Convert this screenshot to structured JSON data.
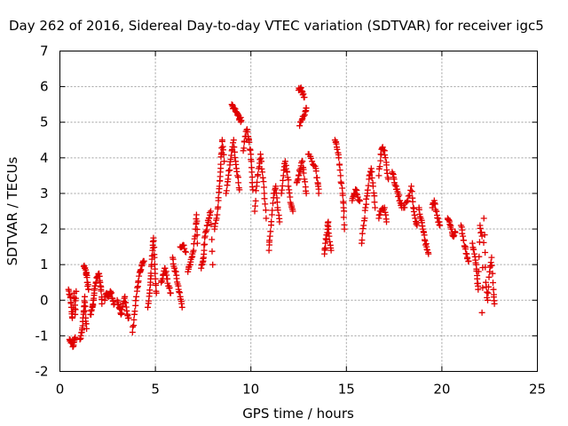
{
  "chart_data": {
    "type": "scatter",
    "title": "Day 262 of 2016, Sidereal Day-to-day VTEC variation (SDTVAR) for receiver igc5",
    "xlabel": "GPS time / hours",
    "ylabel": "SDTVAR / TECUs",
    "xlim": [
      0,
      25
    ],
    "ylim": [
      -2,
      7
    ],
    "xticks": [
      "0",
      "5",
      "10",
      "15",
      "20",
      "25"
    ],
    "yticks": [
      "-2",
      "-1",
      "0",
      "1",
      "2",
      "3",
      "4",
      "5",
      "6",
      "7"
    ],
    "grid": true,
    "marker": "plus",
    "marker_color": "#e00000",
    "series": [
      {
        "name": "SDTVAR",
        "segments": [
          [
            [
              0.45,
              0.3
            ],
            [
              0.55,
              0.1
            ],
            [
              0.6,
              -0.2
            ],
            [
              0.65,
              -0.5
            ],
            [
              0.75,
              0.2
            ],
            [
              0.8,
              -0.4
            ],
            [
              0.85,
              0.25
            ]
          ],
          [
            [
              0.5,
              -1.1
            ],
            [
              0.6,
              -1.2
            ],
            [
              0.7,
              -1.3
            ],
            [
              0.75,
              -1.1
            ],
            [
              0.8,
              -1.05
            ]
          ],
          [
            [
              1.05,
              -1.1
            ],
            [
              1.15,
              -0.9
            ],
            [
              1.2,
              -0.6
            ],
            [
              1.25,
              -0.3
            ],
            [
              1.3,
              0.1
            ],
            [
              1.35,
              -0.5
            ],
            [
              1.4,
              -0.8
            ]
          ],
          [
            [
              1.25,
              0.95
            ],
            [
              1.35,
              0.85
            ],
            [
              1.4,
              0.7
            ],
            [
              1.45,
              0.5
            ],
            [
              1.5,
              0.3
            ]
          ],
          [
            [
              1.6,
              -0.4
            ],
            [
              1.7,
              -0.2
            ],
            [
              1.75,
              0.0
            ],
            [
              1.8,
              0.2
            ],
            [
              1.85,
              0.4
            ],
            [
              1.95,
              0.65
            ],
            [
              2.05,
              0.75
            ],
            [
              2.1,
              0.5
            ],
            [
              2.15,
              0.3
            ],
            [
              2.2,
              -0.1
            ]
          ],
          [
            [
              2.35,
              0.0
            ],
            [
              2.45,
              0.2
            ],
            [
              2.55,
              0.1
            ],
            [
              2.65,
              0.25
            ],
            [
              2.75,
              0.05
            ],
            [
              2.85,
              -0.1
            ]
          ],
          [
            [
              3.0,
              0.0
            ],
            [
              3.1,
              -0.2
            ],
            [
              3.2,
              -0.4
            ],
            [
              3.3,
              -0.1
            ],
            [
              3.4,
              0.1
            ],
            [
              3.5,
              -0.3
            ],
            [
              3.6,
              -0.5
            ]
          ],
          [
            [
              3.8,
              -0.9
            ],
            [
              3.9,
              -0.4
            ],
            [
              4.0,
              0.1
            ],
            [
              4.1,
              0.5
            ],
            [
              4.2,
              0.8
            ],
            [
              4.3,
              1.0
            ],
            [
              4.4,
              1.1
            ]
          ],
          [
            [
              4.6,
              -0.2
            ],
            [
              4.7,
              0.2
            ],
            [
              4.75,
              0.6
            ],
            [
              4.8,
              1.0
            ],
            [
              4.85,
              1.4
            ],
            [
              4.9,
              1.75
            ],
            [
              4.95,
              1.2
            ],
            [
              5.0,
              0.6
            ],
            [
              5.05,
              0.2
            ]
          ],
          [
            [
              5.3,
              0.5
            ],
            [
              5.4,
              0.7
            ],
            [
              5.5,
              0.9
            ],
            [
              5.6,
              0.6
            ],
            [
              5.7,
              0.4
            ],
            [
              5.8,
              0.2
            ]
          ],
          [
            [
              5.9,
              1.2
            ],
            [
              6.0,
              0.9
            ],
            [
              6.1,
              0.7
            ],
            [
              6.2,
              0.4
            ],
            [
              6.3,
              0.1
            ],
            [
              6.4,
              -0.2
            ]
          ],
          [
            [
              6.3,
              1.5
            ],
            [
              6.45,
              1.55
            ],
            [
              6.6,
              1.35
            ]
          ],
          [
            [
              6.7,
              0.8
            ],
            [
              6.8,
              1.0
            ],
            [
              6.9,
              1.2
            ],
            [
              7.0,
              1.4
            ],
            [
              7.1,
              2.0
            ],
            [
              7.15,
              2.4
            ],
            [
              7.2,
              1.6
            ]
          ],
          [
            [
              7.4,
              0.9
            ],
            [
              7.5,
              1.1
            ],
            [
              7.55,
              1.4
            ],
            [
              7.6,
              1.8
            ],
            [
              7.7,
              2.1
            ],
            [
              7.8,
              2.3
            ],
            [
              7.9,
              2.5
            ],
            [
              8.0,
              1.0
            ]
          ],
          [
            [
              8.1,
              2.0
            ],
            [
              8.2,
              2.3
            ],
            [
              8.3,
              2.8
            ],
            [
              8.35,
              3.2
            ],
            [
              8.4,
              3.6
            ],
            [
              8.45,
              4.1
            ],
            [
              8.5,
              4.5
            ],
            [
              8.6,
              3.9
            ]
          ],
          [
            [
              8.7,
              3.0
            ],
            [
              8.8,
              3.4
            ],
            [
              8.9,
              3.8
            ],
            [
              9.0,
              4.2
            ],
            [
              9.1,
              4.5
            ],
            [
              9.2,
              3.9
            ],
            [
              9.3,
              3.5
            ],
            [
              9.4,
              3.1
            ]
          ],
          [
            [
              9.0,
              5.5
            ],
            [
              9.1,
              5.4
            ],
            [
              9.2,
              5.3
            ],
            [
              9.3,
              5.2
            ],
            [
              9.4,
              5.1
            ],
            [
              9.5,
              5.05
            ]
          ],
          [
            [
              9.6,
              4.2
            ],
            [
              9.7,
              4.6
            ],
            [
              9.8,
              4.8
            ],
            [
              9.9,
              4.5
            ],
            [
              10.0,
              4.1
            ],
            [
              10.05,
              3.6
            ],
            [
              10.1,
              3.1
            ]
          ],
          [
            [
              10.2,
              2.5
            ],
            [
              10.3,
              3.2
            ],
            [
              10.4,
              3.7
            ],
            [
              10.5,
              4.1
            ],
            [
              10.6,
              3.6
            ],
            [
              10.7,
              3.0
            ],
            [
              10.8,
              2.3
            ]
          ],
          [
            [
              10.95,
              1.4
            ],
            [
              11.0,
              1.8
            ],
            [
              11.1,
              2.4
            ],
            [
              11.2,
              3.0
            ],
            [
              11.3,
              3.2
            ],
            [
              11.4,
              2.6
            ],
            [
              11.5,
              2.2
            ]
          ],
          [
            [
              11.6,
              3.0
            ],
            [
              11.7,
              3.5
            ],
            [
              11.8,
              3.9
            ],
            [
              11.9,
              3.6
            ],
            [
              12.0,
              3.1
            ],
            [
              12.1,
              2.7
            ],
            [
              12.2,
              2.5
            ]
          ],
          [
            [
              12.4,
              3.3
            ],
            [
              12.5,
              3.5
            ],
            [
              12.6,
              3.7
            ],
            [
              12.7,
              3.9
            ],
            [
              12.8,
              3.4
            ],
            [
              12.9,
              3.0
            ]
          ],
          [
            [
              12.5,
              5.9
            ],
            [
              12.6,
              5.95
            ],
            [
              12.7,
              5.85
            ],
            [
              12.8,
              5.7
            ]
          ],
          [
            [
              12.55,
              4.9
            ],
            [
              12.7,
              5.1
            ],
            [
              12.85,
              5.3
            ],
            [
              12.9,
              5.4
            ]
          ],
          [
            [
              13.0,
              4.1
            ],
            [
              13.2,
              3.9
            ],
            [
              13.4,
              3.7
            ],
            [
              13.5,
              3.3
            ],
            [
              13.55,
              3.0
            ]
          ],
          [
            [
              13.85,
              1.3
            ],
            [
              13.9,
              1.6
            ],
            [
              14.0,
              1.9
            ],
            [
              14.05,
              2.2
            ],
            [
              14.1,
              1.8
            ],
            [
              14.2,
              1.4
            ]
          ],
          [
            [
              14.4,
              4.5
            ],
            [
              14.5,
              4.3
            ],
            [
              14.6,
              4.0
            ],
            [
              14.7,
              3.5
            ],
            [
              14.8,
              3.0
            ],
            [
              14.85,
              2.6
            ],
            [
              14.9,
              2.0
            ]
          ],
          [
            [
              15.3,
              2.8
            ],
            [
              15.4,
              3.0
            ],
            [
              15.5,
              3.1
            ],
            [
              15.6,
              2.9
            ],
            [
              15.7,
              2.8
            ]
          ],
          [
            [
              15.8,
              1.6
            ],
            [
              15.9,
              2.1
            ],
            [
              16.0,
              2.6
            ],
            [
              16.1,
              3.0
            ],
            [
              16.2,
              3.5
            ],
            [
              16.3,
              3.7
            ],
            [
              16.4,
              3.2
            ],
            [
              16.5,
              2.6
            ]
          ],
          [
            [
              16.7,
              3.5
            ],
            [
              16.8,
              4.1
            ],
            [
              16.9,
              4.3
            ],
            [
              17.0,
              4.2
            ],
            [
              17.1,
              3.8
            ],
            [
              17.2,
              3.4
            ]
          ],
          [
            [
              16.7,
              2.3
            ],
            [
              16.8,
              2.5
            ],
            [
              17.0,
              2.6
            ],
            [
              17.1,
              2.2
            ]
          ],
          [
            [
              17.4,
              3.6
            ],
            [
              17.5,
              3.4
            ],
            [
              17.6,
              3.2
            ],
            [
              17.7,
              3.0
            ],
            [
              17.8,
              2.8
            ],
            [
              17.9,
              2.6
            ]
          ],
          [
            [
              18.0,
              2.6
            ],
            [
              18.2,
              2.8
            ],
            [
              18.4,
              3.2
            ],
            [
              18.5,
              2.6
            ],
            [
              18.6,
              2.3
            ],
            [
              18.7,
              2.1
            ]
          ],
          [
            [
              18.8,
              2.6
            ],
            [
              18.9,
              2.3
            ],
            [
              19.0,
              2.0
            ],
            [
              19.1,
              1.7
            ],
            [
              19.2,
              1.5
            ],
            [
              19.3,
              1.3
            ]
          ],
          [
            [
              19.5,
              2.6
            ],
            [
              19.6,
              2.8
            ],
            [
              19.7,
              2.5
            ],
            [
              19.8,
              2.3
            ],
            [
              19.9,
              2.1
            ]
          ],
          [
            [
              20.3,
              2.3
            ],
            [
              20.4,
              2.2
            ],
            [
              20.5,
              2.0
            ],
            [
              20.6,
              1.8
            ],
            [
              20.7,
              1.9
            ]
          ],
          [
            [
              21.0,
              2.1
            ],
            [
              21.1,
              1.8
            ],
            [
              21.2,
              1.5
            ],
            [
              21.3,
              1.3
            ],
            [
              21.4,
              1.1
            ]
          ],
          [
            [
              21.6,
              1.6
            ],
            [
              21.7,
              1.3
            ],
            [
              21.8,
              1.0
            ],
            [
              21.85,
              0.6
            ],
            [
              21.9,
              0.3
            ],
            [
              22.0,
              2.1
            ],
            [
              22.1,
              1.8
            ]
          ],
          [
            [
              22.1,
              -0.35
            ],
            [
              22.2,
              2.3
            ],
            [
              22.3,
              0.5
            ],
            [
              22.4,
              0.0
            ],
            [
              22.5,
              0.8
            ],
            [
              22.6,
              1.2
            ],
            [
              22.7,
              0.3
            ],
            [
              22.75,
              -0.1
            ]
          ]
        ]
      }
    ]
  }
}
